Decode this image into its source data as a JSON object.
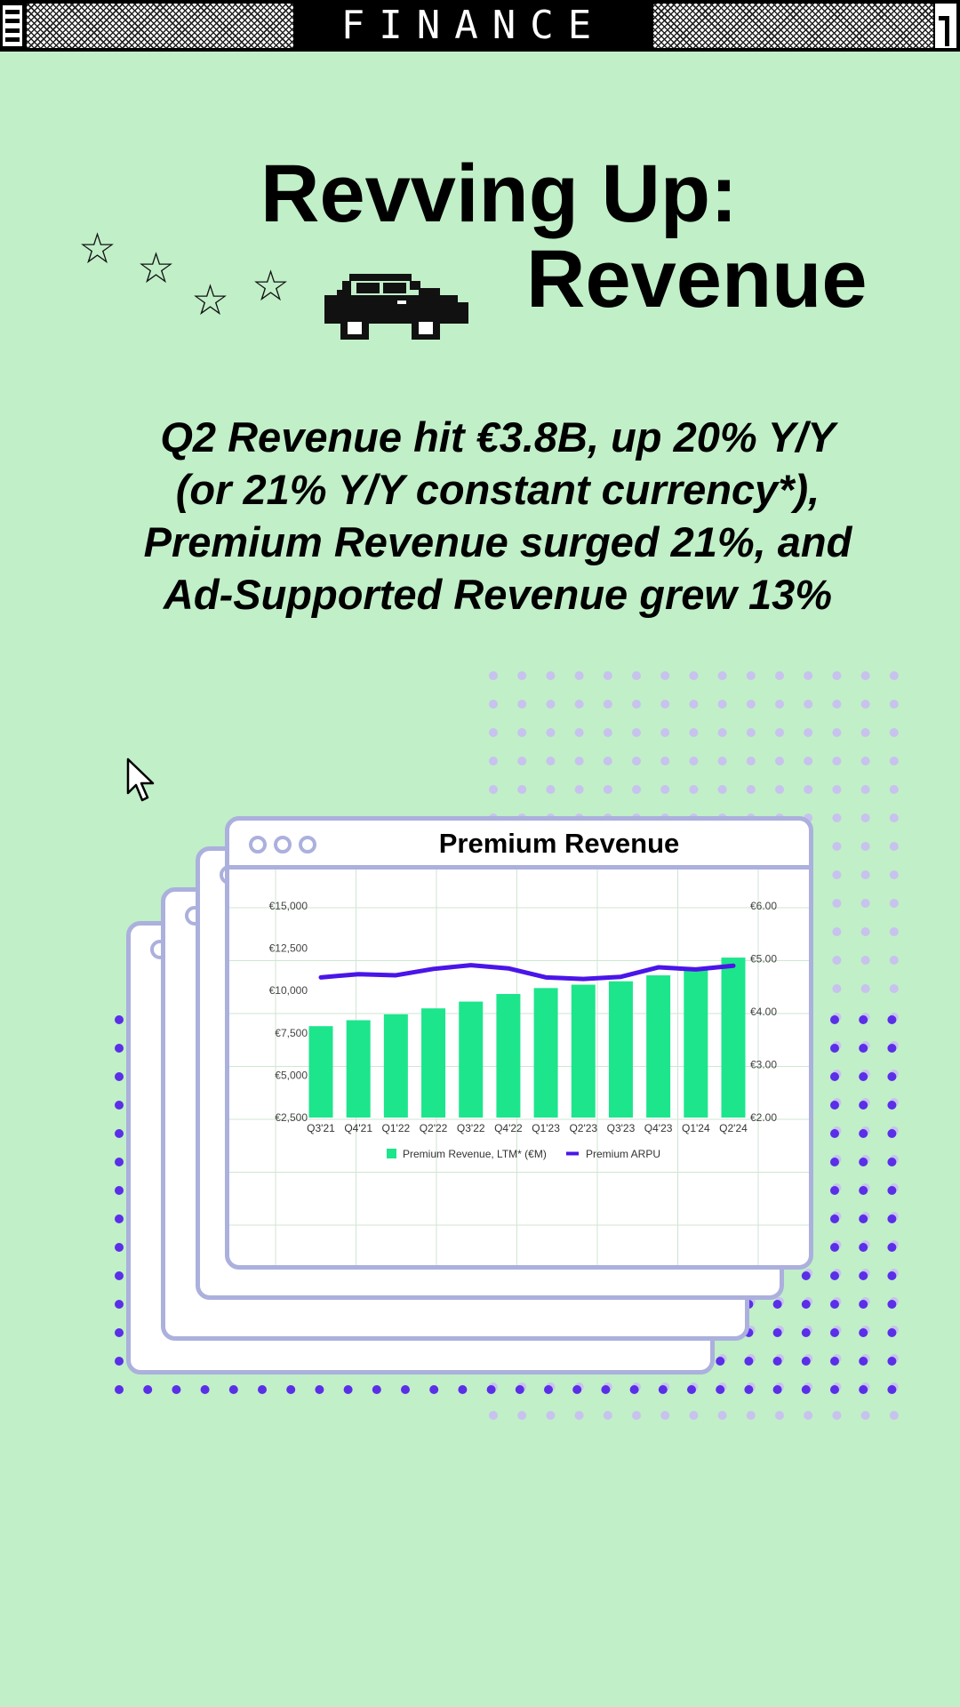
{
  "header": {
    "brand": "FINANCE"
  },
  "hero": {
    "title_line1": "Revving Up:",
    "title_line2": "Revenue",
    "subtitle_lines": [
      "Q2 Revenue hit €3.8B, up 20% Y/Y",
      "(or 21% Y/Y constant currency*),",
      "Premium Revenue surged 21%, and",
      "Ad-Supported Revenue grew 13%"
    ]
  },
  "colors": {
    "background": "#c1efc8",
    "bar": "#1de58c",
    "line": "#4a15e8",
    "window_border": "#abb0dd",
    "dot_purple": "#5b2ee8",
    "dot_lilac": "#c8c2ee"
  },
  "chart_data": {
    "type": "bar",
    "title": "Premium Revenue",
    "categories": [
      "Q3'21",
      "Q4'21",
      "Q1'22",
      "Q2'22",
      "Q3'22",
      "Q4'22",
      "Q1'23",
      "Q2'23",
      "Q3'23",
      "Q4'23",
      "Q1'24",
      "Q2'24"
    ],
    "series": [
      {
        "name": "Premium Revenue, LTM* (€M)",
        "type": "bar",
        "axis": "left",
        "values": [
          7900,
          8250,
          8600,
          8950,
          9350,
          9800,
          10150,
          10350,
          10550,
          10900,
          11300,
          11950
        ]
      },
      {
        "name": "Premium ARPU",
        "type": "line",
        "axis": "right",
        "values": [
          4.65,
          4.71,
          4.69,
          4.81,
          4.88,
          4.82,
          4.65,
          4.62,
          4.66,
          4.84,
          4.8,
          4.87
        ]
      }
    ],
    "y_left": {
      "ticks": [
        "€2,500",
        "€5,000",
        "€7,500",
        "€10,000",
        "€12,500",
        "€15,000"
      ],
      "range": [
        2500,
        15000
      ]
    },
    "y_right": {
      "ticks": [
        "€2.00",
        "€3.00",
        "€4.00",
        "€5.00",
        "€6.00"
      ],
      "range": [
        2.0,
        6.0
      ]
    },
    "grid": true,
    "legend_position": "bottom"
  }
}
